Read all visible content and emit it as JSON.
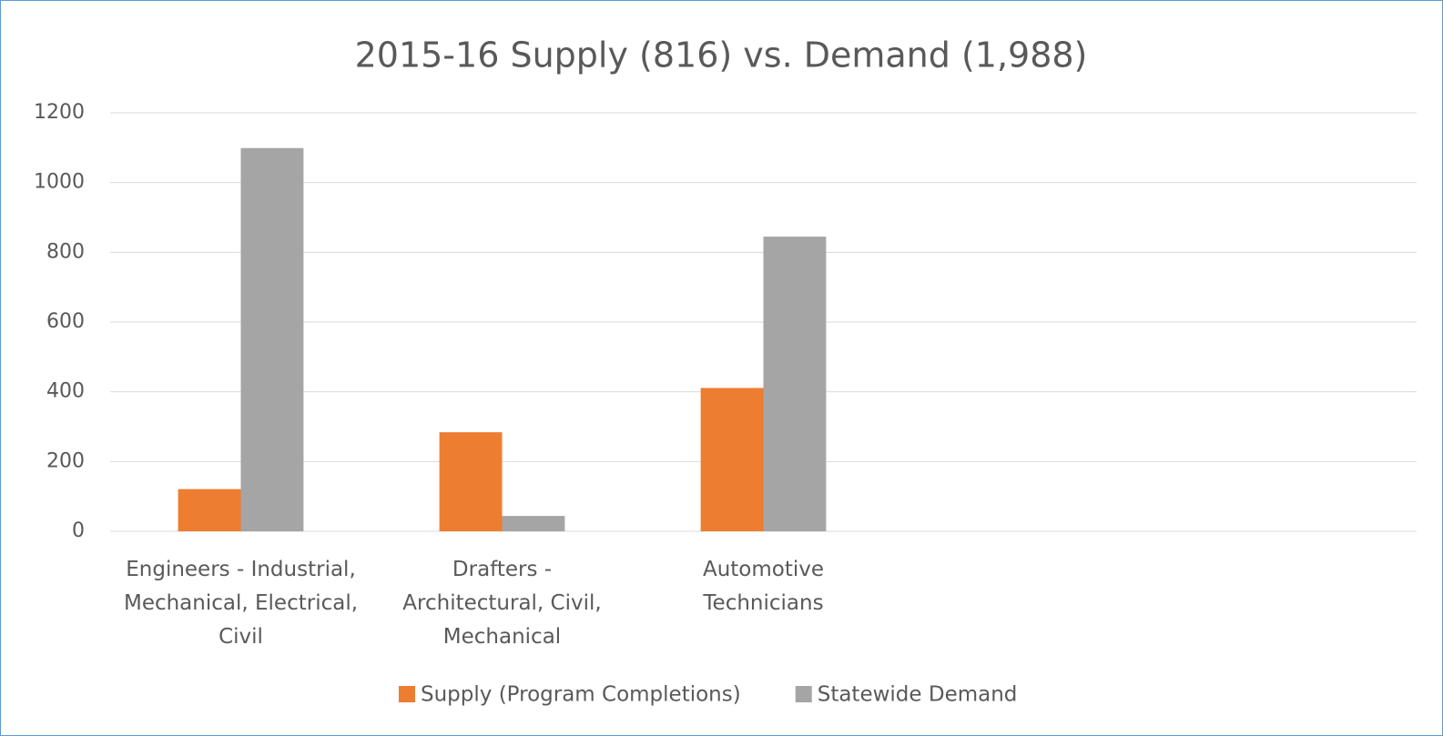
{
  "chart_data": {
    "type": "bar",
    "title": "2015-16 Supply (816) vs. Demand (1,988)",
    "categories": [
      "Engineers - Industrial, Mechanical, Electrical, Civil",
      "Drafters - Architectural, Civil, Mechanical",
      "Automotive Technicians",
      null,
      null
    ],
    "series": [
      {
        "name": "Supply (Program Completions)",
        "color": "#ed7d31",
        "values": [
          121,
          284,
          411,
          null,
          null
        ]
      },
      {
        "name": "Statewide Demand",
        "color": "#a5a5a5",
        "values": [
          1099,
          44,
          845,
          null,
          null
        ]
      }
    ],
    "ylim": [
      0,
      1200
    ],
    "yticks": [
      0,
      200,
      400,
      600,
      800,
      1000,
      1200
    ],
    "grid": true,
    "legend": "bottom"
  }
}
